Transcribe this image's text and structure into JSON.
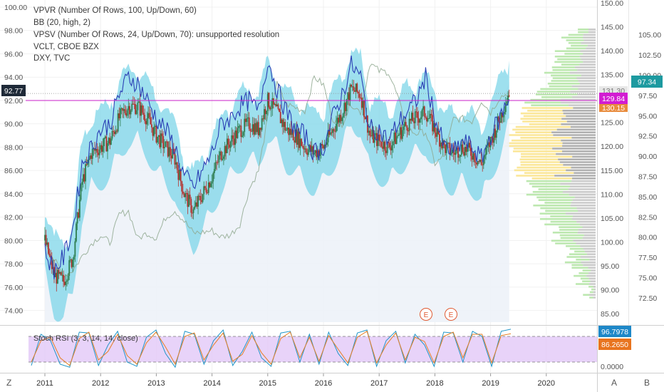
{
  "legend": {
    "line1": "VPVR (Number Of Rows, 100, Up/Down, 60)",
    "line2": "BB (20, high, 2)",
    "line3": "VPSV (Number Of Rows, 24, Up/Down, 70): unsupported resolution",
    "line4": "VCLT, CBOE BZX",
    "line5": "DXY, TVC"
  },
  "stoch_label": "Stoch RSI (3, 3, 14, 14, close)",
  "corner_left": "Z",
  "corner_right_a": "A",
  "corner_right_b": "B",
  "earnings_markers": [
    "E",
    "E"
  ],
  "price_tags": {
    "left_current": "92.77",
    "right_vclt": "97.34",
    "right_hline": "129.84",
    "right_behind_top": "131.30",
    "right_behind_bottom": "130.15",
    "stoch_k": "96.7978",
    "stoch_d": "86.2650"
  },
  "colors": {
    "candle_up": "#2e7d4f",
    "candle_down": "#b5312c",
    "bb_fill": "#7dd6e8",
    "vclt_line": "#2b3fb5",
    "dxy_line": "#8fa88f",
    "hline": "#c81fc8",
    "stoch_k": "#2196c8",
    "stoch_d": "#e67e22",
    "stoch_band": "#e2c8f7",
    "vp_up": "#bde8b0",
    "vp_down": "#a9a9a9",
    "vp_value_area": "#fbe79a",
    "tag_blue": "#1e88c8",
    "tag_orange": "#e8741e",
    "tag_magenta": "#d21cd2",
    "tag_teal": "#1d9aa0"
  },
  "chart_data": [
    {
      "type": "line",
      "series": [
        {
          "name": "DXY, TVC",
          "x": [
            "2011-01",
            "2011-03",
            "2011-05",
            "2011-07",
            "2011-09",
            "2011-11",
            "2012-01",
            "2012-03",
            "2012-05",
            "2012-07",
            "2012-09",
            "2012-11",
            "2013-01",
            "2013-03",
            "2013-05",
            "2013-07",
            "2013-09",
            "2013-11",
            "2014-01",
            "2014-03",
            "2014-05",
            "2014-07",
            "2014-09",
            "2014-11",
            "2015-01",
            "2015-03",
            "2015-05",
            "2015-07",
            "2015-09",
            "2015-11",
            "2016-01",
            "2016-03",
            "2016-05",
            "2016-07",
            "2016-09",
            "2016-11",
            "2017-01",
            "2017-03",
            "2017-05",
            "2017-07",
            "2017-09",
            "2017-11",
            "2018-01",
            "2018-03",
            "2018-05",
            "2018-07",
            "2018-09",
            "2018-11",
            "2019-01",
            "2019-03",
            "2019-05"
          ],
          "values": [
            79.5,
            77.2,
            75.3,
            75.9,
            77.6,
            79.2,
            80.2,
            79.3,
            82.8,
            83.2,
            79.8,
            80.5,
            79.9,
            82.4,
            83.3,
            82.0,
            80.5,
            80.6,
            80.8,
            80.0,
            80.3,
            81.6,
            85.9,
            88.2,
            94.7,
            98.9,
            96.4,
            96.0,
            95.6,
            99.8,
            98.8,
            94.6,
            94.0,
            96.5,
            95.4,
            101.5,
            100.5,
            100.4,
            97.3,
            93.3,
            92.8,
            93.0,
            89.1,
            89.9,
            94.6,
            94.6,
            94.3,
            96.9,
            95.4,
            97.3,
            97.8
          ]
        },
        {
          "name": "VCLT, CBOE BZX",
          "x": [
            "2011-01",
            "2011-03",
            "2011-05",
            "2011-07",
            "2011-09",
            "2011-11",
            "2012-01",
            "2012-03",
            "2012-05",
            "2012-07",
            "2012-09",
            "2012-11",
            "2013-01",
            "2013-03",
            "2013-05",
            "2013-07",
            "2013-09",
            "2013-11",
            "2014-01",
            "2014-03",
            "2014-05",
            "2014-07",
            "2014-09",
            "2014-11",
            "2015-01",
            "2015-03",
            "2015-05",
            "2015-07",
            "2015-09",
            "2015-11",
            "2016-01",
            "2016-03",
            "2016-05",
            "2016-07",
            "2016-09",
            "2016-11",
            "2017-01",
            "2017-03",
            "2017-05",
            "2017-07",
            "2017-09",
            "2017-11",
            "2018-01",
            "2018-03",
            "2018-05",
            "2018-07",
            "2018-09",
            "2018-11",
            "2019-01",
            "2019-03",
            "2019-05"
          ],
          "values": [
            79.0,
            77.5,
            78.5,
            81.0,
            86.5,
            88.0,
            89.5,
            90.0,
            92.5,
            94.0,
            93.5,
            92.0,
            90.5,
            89.5,
            88.0,
            85.5,
            84.5,
            86.0,
            87.5,
            90.0,
            90.5,
            91.5,
            92.0,
            91.0,
            95.5,
            93.0,
            91.0,
            89.5,
            89.0,
            87.5,
            88.0,
            90.5,
            92.5,
            95.0,
            94.0,
            89.5,
            89.5,
            88.5,
            90.0,
            91.0,
            92.0,
            94.0,
            90.5,
            88.0,
            87.5,
            88.5,
            88.0,
            87.0,
            89.0,
            90.5,
            92.3
          ]
        },
        {
          "name": "BB (20, high, 2)",
          "x": [
            "2011-01",
            "2011-03",
            "2011-05",
            "2011-07",
            "2011-09",
            "2011-11",
            "2012-01",
            "2012-03",
            "2012-05",
            "2012-07",
            "2012-09",
            "2012-11",
            "2013-01",
            "2013-03",
            "2013-05",
            "2013-07",
            "2013-09",
            "2013-11",
            "2014-01",
            "2014-03",
            "2014-05",
            "2014-07",
            "2014-09",
            "2014-11",
            "2015-01",
            "2015-03",
            "2015-05",
            "2015-07",
            "2015-09",
            "2015-11",
            "2016-01",
            "2016-03",
            "2016-05",
            "2016-07",
            "2016-09",
            "2016-11",
            "2017-01",
            "2017-03",
            "2017-05",
            "2017-07",
            "2017-09",
            "2017-11",
            "2018-01",
            "2018-03",
            "2018-05",
            "2018-07",
            "2018-09",
            "2018-11",
            "2019-01",
            "2019-03",
            "2019-05"
          ],
          "values": [
            80.0,
            77.0,
            76.5,
            78.5,
            85.0,
            87.5,
            88.0,
            88.5,
            90.5,
            91.5,
            91.5,
            90.5,
            89.0,
            88.0,
            87.0,
            84.0,
            82.5,
            84.0,
            85.5,
            87.5,
            88.5,
            89.5,
            90.0,
            89.5,
            92.0,
            91.0,
            89.5,
            89.0,
            88.0,
            87.5,
            88.0,
            89.5,
            91.0,
            93.0,
            92.5,
            89.0,
            88.5,
            88.0,
            89.0,
            90.0,
            90.5,
            91.0,
            89.5,
            88.0,
            87.5,
            88.0,
            87.5,
            86.5,
            88.5,
            90.5,
            92.8
          ]
        }
      ],
      "ylim_left": [
        73,
        100
      ],
      "ylim_right": [
        69.5,
        108.4
      ],
      "yticks_left": [
        "74.00",
        "76.00",
        "78.00",
        "80.00",
        "82.00",
        "84.00",
        "86.00",
        "88.00",
        "90.00",
        "92.00",
        "94.00",
        "96.00",
        "98.00",
        "100.00"
      ],
      "yticks_right_outer": [
        "72.50",
        "75.00",
        "77.50",
        "80.00",
        "82.50",
        "85.00",
        "87.50",
        "90.00",
        "92.50",
        "95.00",
        "97.50",
        "100.00",
        "102.50",
        "105.00"
      ],
      "yticks_right_inner": [
        "85.00",
        "90.00",
        "95.00",
        "100.00",
        "105.00",
        "110.00",
        "115.00",
        "120.00",
        "125.00",
        "130.00",
        "135.00",
        "140.00",
        "145.00",
        "150.00"
      ],
      "xticks": [
        "2011",
        "2012",
        "2013",
        "2014",
        "2015",
        "2016",
        "2017",
        "2018",
        "2019",
        "2020"
      ],
      "hline": 92.0
    },
    {
      "type": "line",
      "title": "Stoch RSI (3, 3, 14, 14, close)",
      "ylim": [
        0,
        100
      ],
      "yticks": [
        "0.0000"
      ],
      "band": [
        20,
        80
      ],
      "series": [
        {
          "name": "K",
          "values": [
            12,
            85,
            70,
            15,
            8,
            90,
            88,
            12,
            60,
            92,
            20,
            10,
            78,
            95,
            40,
            8,
            92,
            85,
            15,
            70,
            95,
            12,
            45,
            90,
            30,
            10,
            88,
            92,
            20,
            85,
            15,
            90,
            40,
            12,
            88,
            95,
            10,
            70,
            92,
            18,
            85,
            60,
            10,
            90,
            88,
            20,
            92,
            80,
            10,
            92,
            96.8
          ]
        },
        {
          "name": "D",
          "values": [
            20,
            70,
            78,
            30,
            12,
            75,
            90,
            25,
            45,
            85,
            35,
            15,
            65,
            90,
            55,
            15,
            80,
            88,
            25,
            60,
            88,
            22,
            38,
            82,
            42,
            15,
            75,
            90,
            30,
            78,
            22,
            82,
            50,
            18,
            78,
            92,
            18,
            60,
            88,
            25,
            78,
            68,
            18,
            80,
            90,
            30,
            85,
            85,
            18,
            82,
            86.3
          ]
        }
      ]
    }
  ]
}
